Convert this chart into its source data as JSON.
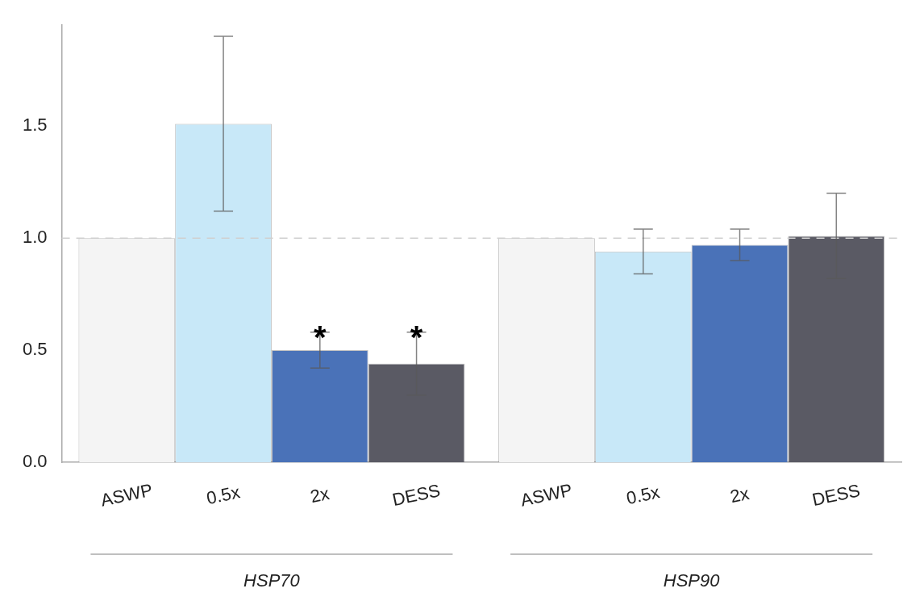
{
  "chart_data": {
    "type": "bar",
    "categories": [
      "HSP70",
      "HSP90"
    ],
    "series": [
      {
        "name": "ASWP",
        "color": "#f4f4f4",
        "values": [
          1.0,
          1.0
        ]
      },
      {
        "name": "0.5x",
        "color": "#c8e8f8",
        "values": [
          1.51,
          0.94
        ],
        "errors": [
          0.39,
          0.1
        ]
      },
      {
        "name": "2x",
        "color": "#4a72b8",
        "values": [
          0.5,
          0.97
        ],
        "errors": [
          0.08,
          0.07
        ],
        "value_labels": [
          "*",
          null
        ]
      },
      {
        "name": "DESS",
        "color": "#5a5a64",
        "values": [
          0.44,
          1.01
        ],
        "errors": [
          0.14,
          0.19
        ],
        "value_labels": [
          "*",
          null
        ]
      }
    ],
    "ylim": [
      0,
      1.95
    ],
    "yticks": [
      {
        "value": 0,
        "label": "0.0"
      },
      {
        "value": 0.5,
        "label": "0.5"
      },
      {
        "value": 1,
        "label": "1.0"
      },
      {
        "value": 1.5,
        "label": "1.5"
      }
    ],
    "ref_lines": [
      {
        "axis": "y",
        "value": 1.0,
        "color": "#d0d0d0",
        "line_style": "dashed"
      }
    ],
    "grid": false,
    "legend": false
  }
}
